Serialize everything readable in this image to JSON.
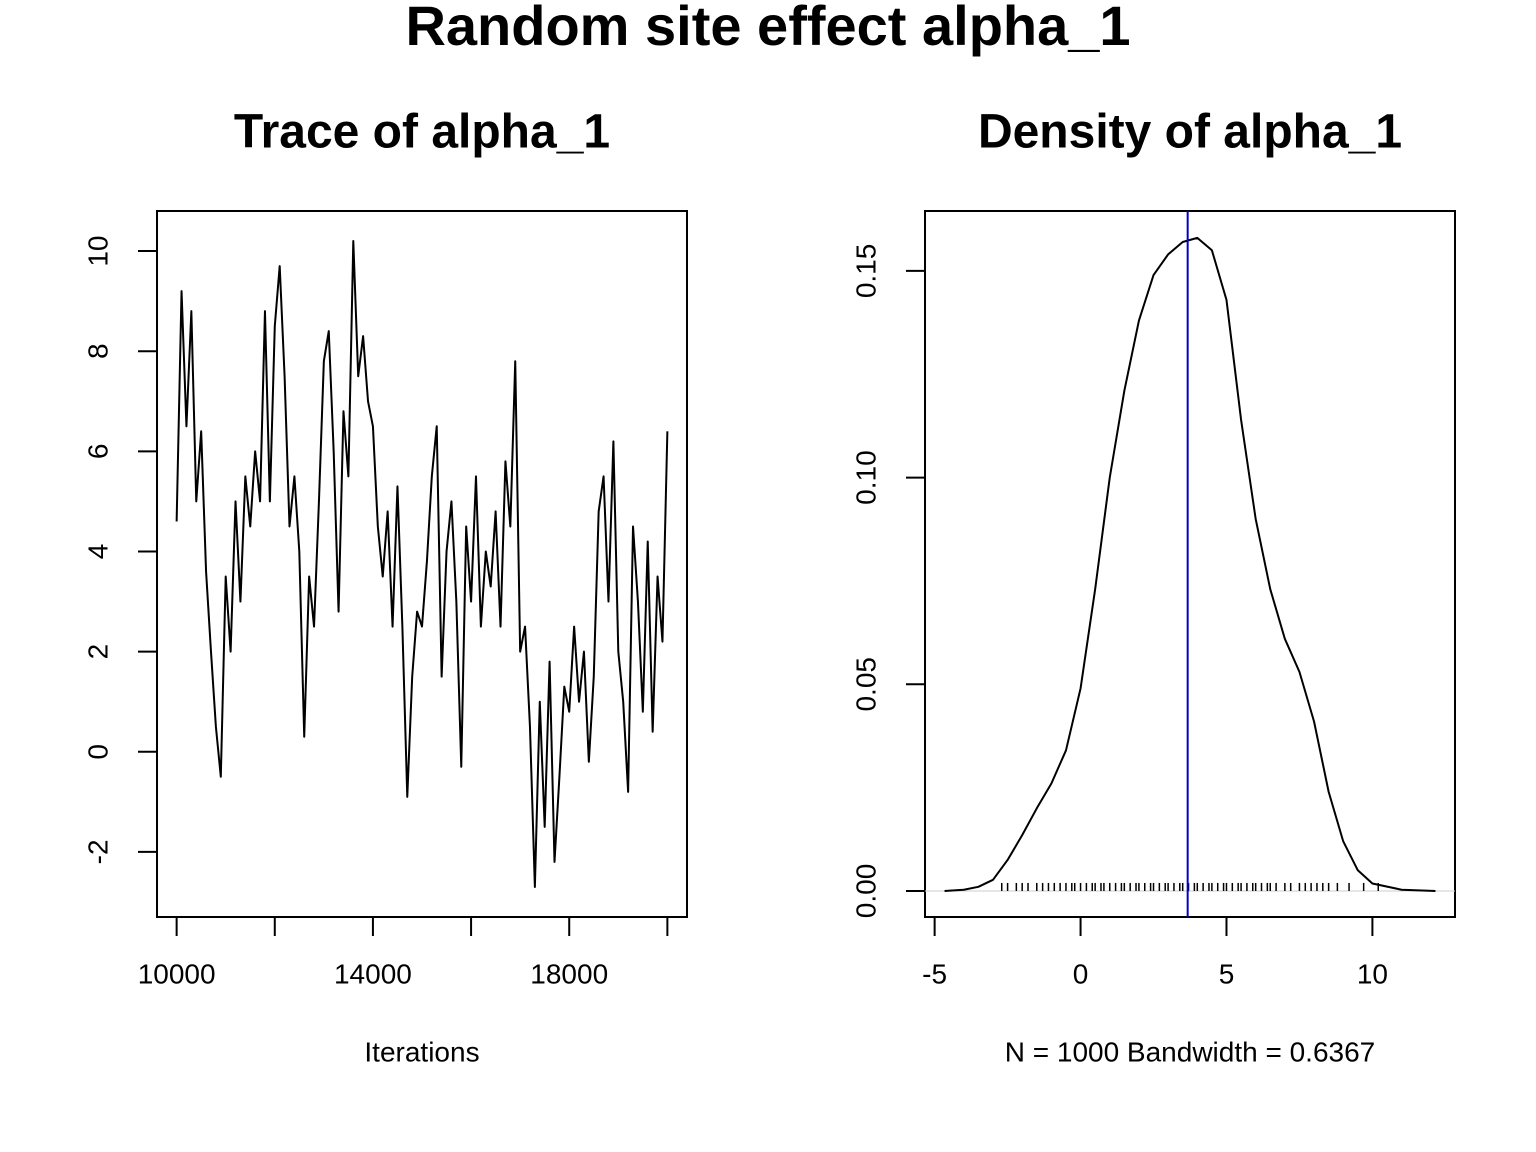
{
  "title": "Random site effect alpha_1",
  "chart_data": [
    {
      "type": "line",
      "title": "Trace of alpha_1",
      "xlabel": "Iterations",
      "color": "#000000",
      "xlim": [
        9600,
        20400
      ],
      "ylim": [
        -3.3,
        10.8
      ],
      "xticks": [
        10000,
        {
          "value": 12000,
          "label": null
        },
        14000,
        {
          "value": 16000,
          "label": null
        },
        18000,
        {
          "value": 20000,
          "label": null
        }
      ],
      "yticks": [
        -2,
        0,
        2,
        4,
        6,
        8,
        10
      ],
      "x": [
        10000,
        10100,
        10200,
        10300,
        10400,
        10500,
        10600,
        10700,
        10800,
        10900,
        11000,
        11100,
        11200,
        11300,
        11400,
        11500,
        11600,
        11700,
        11800,
        11900,
        12000,
        12100,
        12200,
        12300,
        12400,
        12500,
        12600,
        12700,
        12800,
        12900,
        13000,
        13100,
        13200,
        13300,
        13400,
        13500,
        13600,
        13700,
        13800,
        13900,
        14000,
        14100,
        14200,
        14300,
        14400,
        14500,
        14600,
        14700,
        14800,
        14900,
        15000,
        15100,
        15200,
        15300,
        15400,
        15500,
        15600,
        15700,
        15800,
        15900,
        16000,
        16100,
        16200,
        16300,
        16400,
        16500,
        16600,
        16700,
        16800,
        16900,
        17000,
        17100,
        17200,
        17300,
        17400,
        17500,
        17600,
        17700,
        17800,
        17900,
        18000,
        18100,
        18200,
        18300,
        18400,
        18500,
        18600,
        18700,
        18800,
        18900,
        19000,
        19100,
        19200,
        19300,
        19400,
        19500,
        19600,
        19700,
        19800,
        19900,
        20000
      ],
      "values": [
        4.6,
        9.2,
        6.5,
        8.8,
        5.0,
        6.4,
        3.6,
        2.0,
        0.5,
        -0.5,
        3.5,
        2.0,
        5.0,
        3.0,
        5.5,
        4.5,
        6.0,
        5.0,
        8.8,
        5.0,
        8.5,
        9.7,
        7.5,
        4.5,
        5.5,
        4.0,
        0.3,
        3.5,
        2.5,
        5.0,
        7.8,
        8.4,
        6.0,
        2.8,
        6.8,
        5.5,
        10.2,
        7.5,
        8.3,
        7.0,
        6.5,
        4.5,
        3.5,
        4.8,
        2.5,
        5.3,
        2.5,
        -0.9,
        1.5,
        2.8,
        2.5,
        3.8,
        5.5,
        6.5,
        1.5,
        4.0,
        5.0,
        3.0,
        -0.3,
        4.5,
        3.0,
        5.5,
        2.5,
        4.0,
        3.3,
        4.8,
        2.5,
        5.8,
        4.5,
        7.8,
        2.0,
        2.5,
        0.5,
        -2.7,
        1.0,
        -1.5,
        1.8,
        -2.2,
        -0.5,
        1.3,
        0.8,
        2.5,
        1.0,
        2.0,
        -0.2,
        1.5,
        4.8,
        5.5,
        3.0,
        6.2,
        2.0,
        1.0,
        -0.8,
        4.5,
        3.0,
        0.8,
        4.2,
        0.4,
        3.5,
        2.2,
        6.4
      ]
    },
    {
      "type": "line",
      "title": "Density of alpha_1",
      "xlabel": "N = 1000   Bandwidth = 0.6367",
      "color": "#000000",
      "xlim": [
        -5.33,
        12.83
      ],
      "ylim": [
        -0.0063,
        0.1645
      ],
      "xticks": [
        -5,
        0,
        5,
        10
      ],
      "yticks": [
        {
          "value": 0,
          "label": "0.00"
        },
        {
          "value": 0.05,
          "label": "0.05"
        },
        {
          "value": 0.1,
          "label": "0.10"
        },
        {
          "value": 0.15,
          "label": "0.15"
        }
      ],
      "x": [
        -4.66,
        -4,
        -3.5,
        -3,
        -2.5,
        -2,
        -1.5,
        -1,
        -0.5,
        0,
        0.5,
        1,
        1.5,
        2,
        2.5,
        3,
        3.5,
        4,
        4.5,
        5,
        5.5,
        6,
        6.5,
        7,
        7.5,
        8,
        8.5,
        9,
        9.5,
        10,
        11,
        12.16
      ],
      "values": [
        0,
        0.0003,
        0.001,
        0.0027,
        0.0075,
        0.0135,
        0.02,
        0.026,
        0.034,
        0.049,
        0.073,
        0.1,
        0.121,
        0.138,
        0.149,
        0.154,
        0.157,
        0.158,
        0.155,
        0.143,
        0.114,
        0.09,
        0.073,
        0.061,
        0.053,
        0.041,
        0.024,
        0.012,
        0.005,
        0.0018,
        0.0003,
        0
      ],
      "vline": 3.67,
      "vline_color": "#0000cc",
      "rug": [
        -2.7,
        -2.5,
        -2.2,
        -2.0,
        -1.8,
        -1.5,
        -1.3,
        -1.1,
        -0.9,
        -0.7,
        -0.5,
        -0.3,
        -0.2,
        0,
        0.2,
        0.4,
        0.5,
        0.7,
        0.8,
        1.0,
        1.2,
        1.4,
        1.5,
        1.7,
        1.9,
        2.0,
        2.2,
        2.4,
        2.5,
        2.7,
        2.9,
        3.0,
        3.2,
        3.4,
        3.5,
        3.7,
        3.9,
        4.0,
        4.2,
        4.4,
        4.5,
        4.7,
        4.9,
        5.0,
        5.2,
        5.4,
        5.5,
        5.7,
        5.9,
        6.0,
        6.2,
        6.4,
        6.5,
        6.7,
        7.0,
        7.2,
        7.5,
        7.7,
        7.9,
        8.1,
        8.3,
        8.5,
        8.8,
        9.2,
        9.7,
        10.2
      ]
    }
  ]
}
